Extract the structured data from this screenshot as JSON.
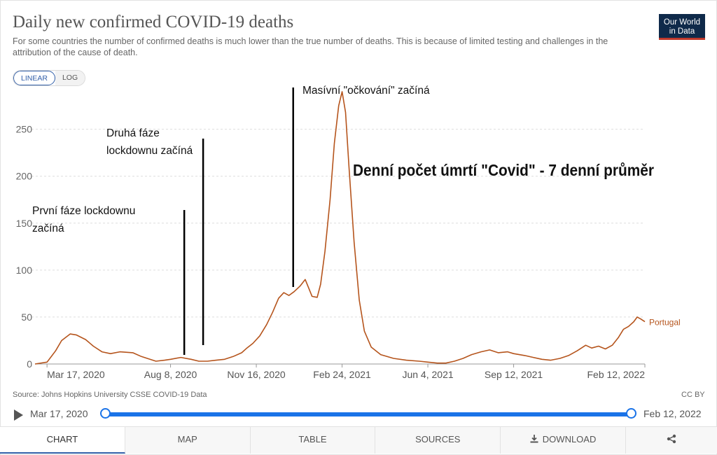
{
  "header": {
    "title": "Daily new confirmed COVID-19 deaths",
    "subtitle": "For some countries the number of confirmed deaths is much lower than the true number of deaths. This is because of limited testing and challenges in the attribution of the cause of death.",
    "logo_line1": "Our World",
    "logo_line2": "in Data"
  },
  "scale_toggle": {
    "linear": "LINEAR",
    "log": "LOG",
    "active": "linear"
  },
  "chart_data": {
    "type": "line",
    "ylim": [
      0,
      290
    ],
    "yticks": [
      0,
      50,
      100,
      150,
      200,
      250
    ],
    "x_start": "2020-03-03",
    "x_end": "2022-02-12",
    "xtick_labels": [
      "Mar 17, 2020",
      "Aug 8, 2020",
      "Nov 16, 2020",
      "Feb 24, 2021",
      "Jun 4, 2021",
      "Sep 12, 2021",
      "Feb 12, 2022"
    ],
    "xtick_dates": [
      "2020-03-17",
      "2020-08-08",
      "2020-11-16",
      "2021-02-24",
      "2021-06-04",
      "2021-09-12",
      "2022-02-12"
    ],
    "series": [
      {
        "name": "Portugal",
        "color": "#b5541c",
        "points": [
          [
            "2020-03-03",
            0
          ],
          [
            "2020-03-17",
            2
          ],
          [
            "2020-03-27",
            14
          ],
          [
            "2020-04-03",
            25
          ],
          [
            "2020-04-13",
            32
          ],
          [
            "2020-04-20",
            31
          ],
          [
            "2020-05-01",
            26
          ],
          [
            "2020-05-10",
            19
          ],
          [
            "2020-05-20",
            13
          ],
          [
            "2020-05-30",
            11
          ],
          [
            "2020-06-10",
            13
          ],
          [
            "2020-06-25",
            12
          ],
          [
            "2020-07-05",
            8
          ],
          [
            "2020-07-15",
            5
          ],
          [
            "2020-07-22",
            3
          ],
          [
            "2020-08-01",
            4
          ],
          [
            "2020-08-08",
            5
          ],
          [
            "2020-08-20",
            7
          ],
          [
            "2020-09-01",
            5
          ],
          [
            "2020-09-10",
            3
          ],
          [
            "2020-09-20",
            3
          ],
          [
            "2020-09-30",
            4
          ],
          [
            "2020-10-10",
            5
          ],
          [
            "2020-10-20",
            8
          ],
          [
            "2020-10-30",
            12
          ],
          [
            "2020-11-05",
            17
          ],
          [
            "2020-11-12",
            22
          ],
          [
            "2020-11-20",
            30
          ],
          [
            "2020-11-28",
            42
          ],
          [
            "2020-12-05",
            55
          ],
          [
            "2020-12-12",
            70
          ],
          [
            "2020-12-18",
            76
          ],
          [
            "2020-12-24",
            73
          ],
          [
            "2020-12-30",
            77
          ],
          [
            "2021-01-06",
            83
          ],
          [
            "2021-01-12",
            90
          ],
          [
            "2021-01-16",
            81
          ],
          [
            "2021-01-20",
            72
          ],
          [
            "2021-01-26",
            71
          ],
          [
            "2021-01-30",
            85
          ],
          [
            "2021-02-04",
            120
          ],
          [
            "2021-02-10",
            175
          ],
          [
            "2021-02-15",
            235
          ],
          [
            "2021-02-20",
            275
          ],
          [
            "2021-02-24",
            290
          ],
          [
            "2021-02-28",
            268
          ],
          [
            "2021-03-04",
            210
          ],
          [
            "2021-03-10",
            130
          ],
          [
            "2021-03-16",
            68
          ],
          [
            "2021-03-22",
            35
          ],
          [
            "2021-03-30",
            18
          ],
          [
            "2021-04-10",
            10
          ],
          [
            "2021-04-25",
            6
          ],
          [
            "2021-05-10",
            4
          ],
          [
            "2021-05-25",
            3
          ],
          [
            "2021-06-04",
            2
          ],
          [
            "2021-06-15",
            1
          ],
          [
            "2021-06-25",
            1
          ],
          [
            "2021-07-05",
            3
          ],
          [
            "2021-07-15",
            6
          ],
          [
            "2021-07-25",
            10
          ],
          [
            "2021-08-05",
            13
          ],
          [
            "2021-08-15",
            15
          ],
          [
            "2021-08-25",
            12
          ],
          [
            "2021-09-05",
            13
          ],
          [
            "2021-09-12",
            11
          ],
          [
            "2021-09-25",
            9
          ],
          [
            "2021-10-05",
            7
          ],
          [
            "2021-10-15",
            5
          ],
          [
            "2021-10-25",
            4
          ],
          [
            "2021-11-05",
            6
          ],
          [
            "2021-11-15",
            9
          ],
          [
            "2021-11-25",
            14
          ],
          [
            "2021-12-05",
            20
          ],
          [
            "2021-12-12",
            17
          ],
          [
            "2021-12-20",
            19
          ],
          [
            "2021-12-28",
            16
          ],
          [
            "2022-01-05",
            20
          ],
          [
            "2022-01-12",
            28
          ],
          [
            "2022-01-18",
            37
          ],
          [
            "2022-01-24",
            40
          ],
          [
            "2022-01-30",
            45
          ],
          [
            "2022-02-03",
            50
          ],
          [
            "2022-02-07",
            48
          ],
          [
            "2022-02-12",
            45
          ]
        ]
      }
    ],
    "annotations": [
      {
        "lines": [
          "První fáze lockdownu",
          "začíná"
        ],
        "date": "2020-08-24"
      },
      {
        "lines": [
          "Druhá fáze",
          "lockdownu začíná"
        ],
        "date": "2020-09-15"
      },
      {
        "lines": [
          "Masívní \"očkování\" začíná"
        ],
        "date": "2020-12-29"
      }
    ],
    "overlay_caption": "Denní počet úmrtí \"Covid\" - 7 denní průměr"
  },
  "footer": {
    "source": "Source: Johns Hopkins University CSSE COVID-19 Data",
    "license": "CC BY"
  },
  "timeline": {
    "start_label": "Mar 17, 2020",
    "end_label": "Feb 12, 2022"
  },
  "tabs": [
    {
      "label": "CHART",
      "active": true
    },
    {
      "label": "MAP",
      "active": false
    },
    {
      "label": "TABLE",
      "active": false
    },
    {
      "label": "SOURCES",
      "active": false
    },
    {
      "label": "DOWNLOAD",
      "active": false
    }
  ]
}
